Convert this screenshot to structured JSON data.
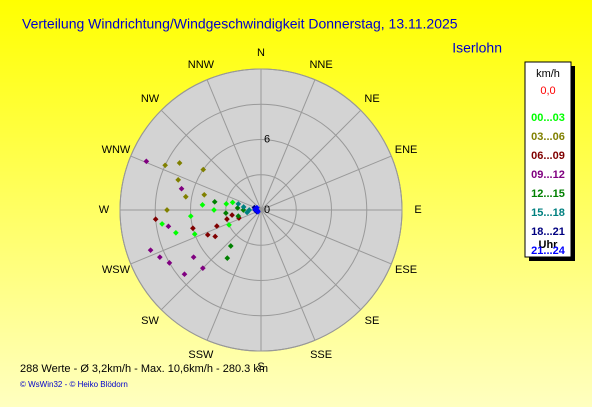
{
  "chart_data": {
    "type": "polar-scatter",
    "title": "Verteilung Windrichtung/Windgeschwindigkeit  Donnerstag, 13.11.2025",
    "station": "Iserlohn",
    "directions": [
      "N",
      "NNE",
      "NE",
      "ENE",
      "E",
      "ESE",
      "SE",
      "SSE",
      "S",
      "SSW",
      "SW",
      "WSW",
      "W",
      "WNW",
      "NW",
      "NNW"
    ],
    "rlim": [
      0,
      12
    ],
    "rticks": [
      0,
      6
    ],
    "rgrid": [
      3,
      6,
      9,
      12
    ],
    "legend_title": "km/h",
    "current_label": "0,0",
    "legend_footer": "Uhr",
    "series": [
      {
        "name": "00...03",
        "color": "#00ff00",
        "x": [
          270,
          265,
          255,
          280,
          275,
          250,
          262,
          285,
          245
        ],
        "values": [
          4,
          6,
          7.5,
          3,
          5,
          6,
          8.5,
          2.5,
          3
        ]
      },
      {
        "name": "03...06",
        "color": "#808000",
        "x": [
          295,
          290,
          300,
          280,
          270,
          305,
          285
        ],
        "values": [
          9,
          7.5,
          8,
          6.5,
          8,
          6,
          5
        ]
      },
      {
        "name": "06...09",
        "color": "#800000",
        "x": [
          255,
          250,
          245,
          260,
          240,
          255,
          265,
          250
        ],
        "values": [
          3,
          4,
          5,
          2.5,
          4.5,
          6,
          9,
          2
        ]
      },
      {
        "name": "09...12",
        "color": "#800080",
        "x": [
          293,
          240,
          230,
          250,
          235,
          260,
          225,
          245,
          285
        ],
        "values": [
          10.6,
          9,
          8.5,
          10,
          7,
          8,
          7,
          9.5,
          7
        ]
      },
      {
        "name": "12...15",
        "color": "#008000",
        "x": [
          265,
          275,
          255,
          280,
          215,
          220,
          270
        ],
        "values": [
          3,
          2,
          2,
          4,
          5,
          4,
          1.5
        ]
      },
      {
        "name": "15...18",
        "color": "#008080",
        "x": [
          270,
          280,
          260,
          285
        ],
        "values": [
          1,
          1.5,
          1.2,
          2
        ]
      },
      {
        "name": "18...21",
        "color": "#000080",
        "x": [
          270,
          250,
          290
        ],
        "values": [
          0.5,
          0.4,
          0.6
        ]
      },
      {
        "name": "21...24",
        "color": "#0000ff",
        "x": [
          260,
          275,
          300,
          240
        ],
        "values": [
          0.3,
          0.5,
          0.4,
          0.3
        ]
      }
    ],
    "footer": "288 Werte   -   Ø 3,2km/h  -  Max. 10,6km/h   -   280.3 km",
    "copyright": "© WsWin32  -  © Heiko Blödorn"
  }
}
